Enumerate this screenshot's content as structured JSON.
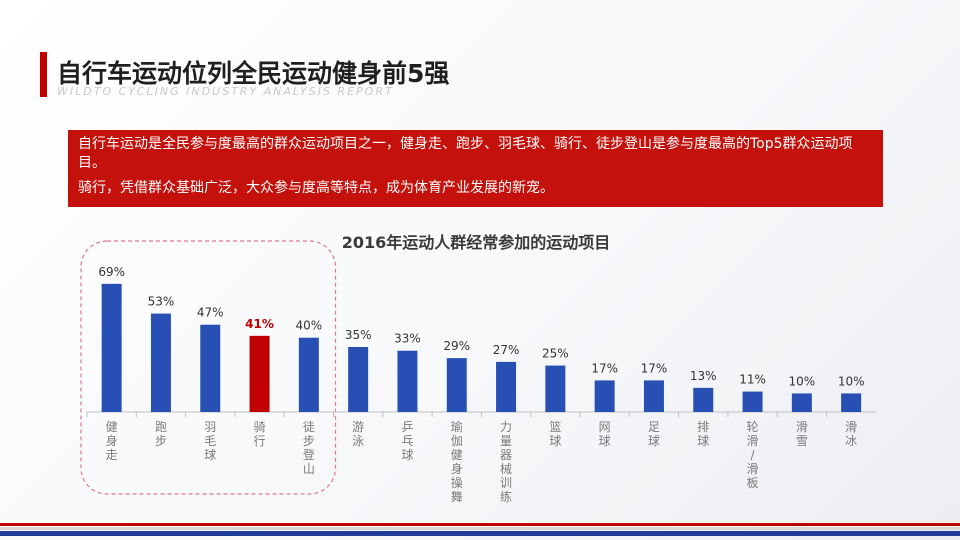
{
  "header": {
    "title": "自行车运动位列全民运动健身前5强",
    "subtitle": "WILDTO CYCLING INDUSTRY ANALYSIS REPORT"
  },
  "info": {
    "paragraph1": "自行车运动是全民参与度最高的群众运动项目之一，健身走、跑步、羽毛球、骑行、徒步登山是参与度最高的Top5群众运动项目。",
    "paragraph2": "骑行，凭借群众基础广泛，大众参与度高等特点，成为体育产业发展的新宠。"
  },
  "colors": {
    "accent": "#c00000",
    "bar": "#2850b4",
    "highlight_bar": "#c00000",
    "highlight_box": "#e07a8a"
  },
  "chart_data": {
    "type": "bar",
    "title": "2016年运动人群经常参加的运动项目",
    "categories": [
      "健身走",
      "跑步",
      "羽毛球",
      "骑行",
      "徒步登山",
      "游泳",
      "乒乓球",
      "瑜伽健身操舞",
      "力量器械训练",
      "篮球",
      "网球",
      "足球",
      "排球",
      "轮滑/滑板",
      "滑雪",
      "滑冰"
    ],
    "values": [
      69,
      53,
      47,
      41,
      40,
      35,
      33,
      29,
      27,
      25,
      17,
      17,
      13,
      11,
      10,
      10
    ],
    "value_labels": [
      "69%",
      "53%",
      "47%",
      "41%",
      "40%",
      "35%",
      "33%",
      "29%",
      "27%",
      "25%",
      "17%",
      "17%",
      "13%",
      "11%",
      "10%",
      "10%"
    ],
    "highlight_index": 3,
    "top_group_count": 5,
    "ylim": [
      0,
      70
    ],
    "grid": false,
    "legend": "none"
  }
}
